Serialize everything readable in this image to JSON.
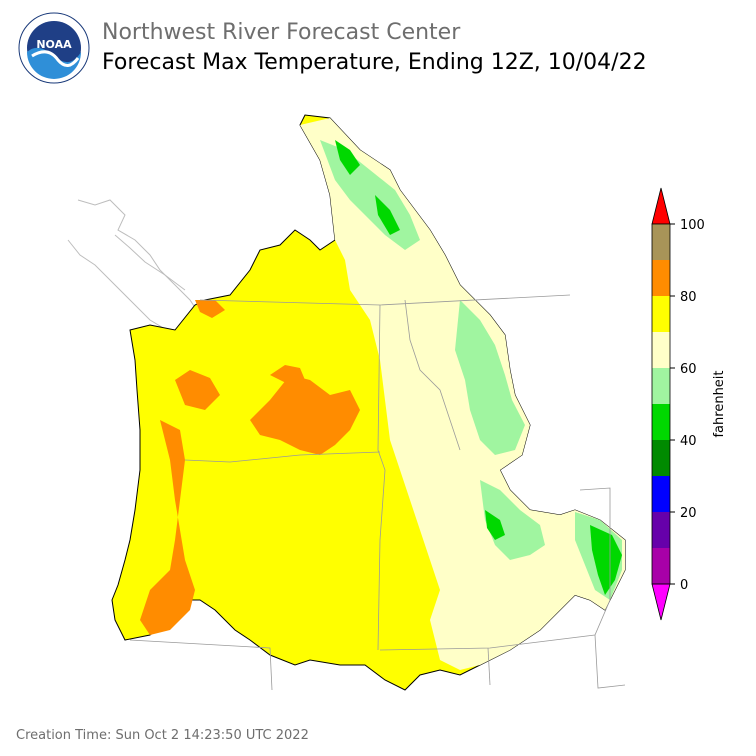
{
  "header": {
    "org_title": "Northwest River Forecast Center",
    "map_title": "Forecast Max Temperature, Ending 12Z, 10/04/22"
  },
  "logo": {
    "text": "NOAA",
    "icon": "noaa-logo-icon"
  },
  "legend": {
    "label": "fahrenheit",
    "ticks": [
      "0",
      "20",
      "40",
      "60",
      "80",
      "100"
    ],
    "bins": [
      {
        "range": "below 0",
        "color": "#ff00ff"
      },
      {
        "range": "0-10",
        "color": "#a800a8"
      },
      {
        "range": "10-20",
        "color": "#6600aa"
      },
      {
        "range": "20-30",
        "color": "#0000ff"
      },
      {
        "range": "30-40",
        "color": "#008a00"
      },
      {
        "range": "40-50",
        "color": "#00d800"
      },
      {
        "range": "50-60",
        "color": "#a0f5a0"
      },
      {
        "range": "60-70",
        "color": "#ffffc8"
      },
      {
        "range": "70-80",
        "color": "#ffff00"
      },
      {
        "range": "80-90",
        "color": "#ff8c00"
      },
      {
        "range": "90-100",
        "color": "#a89458"
      },
      {
        "range": "above 100",
        "color": "#ff0000"
      }
    ]
  },
  "footer": {
    "creation_time": "Creation Time: Sun Oct 2 14:23:50 UTC 2022"
  }
}
